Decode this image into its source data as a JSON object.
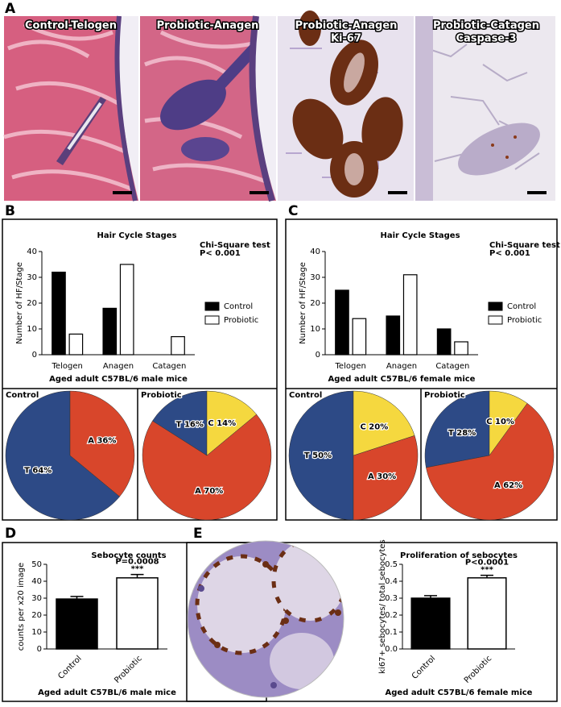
{
  "figure": {
    "panel_labels": [
      "A",
      "B",
      "C",
      "D",
      "E"
    ],
    "micrographs": [
      {
        "label": "Control-Telogen"
      },
      {
        "label": "Probiotic-Anagen"
      },
      {
        "label": "Probiotic-Anagen",
        "stain": "Ki-67"
      },
      {
        "label": "Probiotic-Catagen",
        "stain": "Caspase-3"
      }
    ]
  },
  "chart_data": [
    {
      "type": "bar",
      "title": "Hair Cycle Stages",
      "y_label": "Number of HF/Stage",
      "x_label": "Aged adult C57BL/6 male mice",
      "annotations": [
        "Chi-Square test",
        "P< 0.001"
      ],
      "categories": [
        "Telogen",
        "Anagen",
        "Catagen"
      ],
      "series": [
        {
          "name": "Control",
          "color": "#000000",
          "values": [
            32,
            18,
            0
          ]
        },
        {
          "name": "Probiotic",
          "color": "#ffffff",
          "values": [
            8,
            35,
            7
          ]
        }
      ],
      "ylim": [
        0,
        40
      ],
      "yticks": [
        0,
        10,
        20,
        30,
        40
      ],
      "legend": "right"
    },
    {
      "type": "pie",
      "title": "Control",
      "values": [
        64,
        36
      ],
      "value_labels": [
        "T 64%",
        "A 36%"
      ],
      "colors": [
        "#2d4a86",
        "#d8462b"
      ]
    },
    {
      "type": "pie",
      "title": "Probiotic",
      "values": [
        16,
        70,
        14
      ],
      "value_labels": [
        "T 16%",
        "A 70%",
        "C 14%"
      ],
      "colors": [
        "#2d4a86",
        "#d8462b",
        "#f5d83f"
      ]
    },
    {
      "type": "bar",
      "title": "Hair Cycle Stages",
      "y_label": "Number of HF/Stage",
      "x_label": "Aged adult C57BL/6 female mice",
      "annotations": [
        "Chi-Square test",
        "P< 0.001"
      ],
      "categories": [
        "Telogen",
        "Anagen",
        "Catagen"
      ],
      "series": [
        {
          "name": "Control",
          "color": "#000000",
          "values": [
            25,
            15,
            10
          ]
        },
        {
          "name": "Probiotic",
          "color": "#ffffff",
          "values": [
            14,
            31,
            5
          ]
        }
      ],
      "ylim": [
        0,
        40
      ],
      "yticks": [
        0,
        10,
        20,
        30,
        40
      ],
      "legend": "right"
    },
    {
      "type": "pie",
      "title": "Control",
      "values": [
        50,
        30,
        20
      ],
      "value_labels": [
        "T 50%",
        "A 30%",
        "C 20%"
      ],
      "colors": [
        "#2d4a86",
        "#d8462b",
        "#f5d83f"
      ]
    },
    {
      "type": "pie",
      "title": "Probiotic",
      "values": [
        28,
        62,
        10
      ],
      "value_labels": [
        "T 28%",
        "A 62%",
        "C 10%"
      ],
      "colors": [
        "#2d4a86",
        "#d8462b",
        "#f5d83f"
      ]
    },
    {
      "type": "bar",
      "title": "Sebocyte counts",
      "y_label": "counts per x20 image",
      "x_label": "Aged adult C57BL/6 male mice",
      "annotations": [
        "P=0.0008",
        "***"
      ],
      "categories": [
        "Control",
        "Probiotic"
      ],
      "values": [
        29.5,
        42
      ],
      "errors": [
        1.5,
        2
      ],
      "colors": [
        "#000000",
        "#ffffff"
      ],
      "ylim": [
        0,
        50
      ],
      "yticks": [
        0,
        10,
        20,
        30,
        40,
        50
      ]
    },
    {
      "type": "bar",
      "title": "Proliferation of sebocytes",
      "y_label": "ki67+ sebocytes/ total sebocytes",
      "x_label": "Aged adult C57BL/6 female mice",
      "annotations": [
        "P<0.0001",
        "***"
      ],
      "categories": [
        "Control",
        "Probiotic"
      ],
      "values": [
        0.3,
        0.42
      ],
      "errors": [
        0.015,
        0.015
      ],
      "colors": [
        "#000000",
        "#ffffff"
      ],
      "ylim": [
        0,
        0.5
      ],
      "yticks": [
        {
          "value": 0,
          "label": "0.0"
        },
        0.1,
        0.2,
        0.3,
        0.4,
        0.5
      ]
    }
  ]
}
